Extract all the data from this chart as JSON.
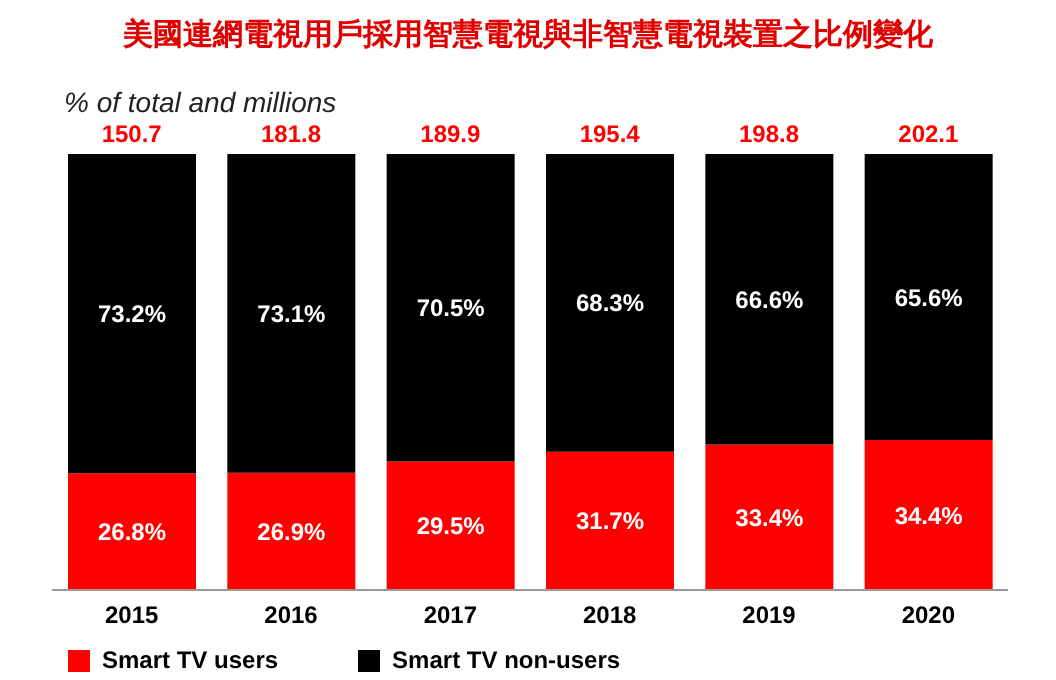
{
  "chart_data": {
    "type": "bar",
    "title": "美國連網電視用戶採用智慧電視與非智慧電視裝置之比例變化",
    "subtitle": "% of total and millions",
    "categories": [
      "2015",
      "2016",
      "2017",
      "2018",
      "2019",
      "2020"
    ],
    "stacked": true,
    "legend": "bottom left",
    "grid": false,
    "annotations": [
      {
        "text": "150.7",
        "x": "2015",
        "y": 100
      },
      {
        "text": "181.8",
        "x": "2016",
        "y": 100
      },
      {
        "text": "189.9",
        "x": "2017",
        "y": 100
      },
      {
        "text": "195.4",
        "x": "2018",
        "y": 100
      },
      {
        "text": "198.8",
        "x": "2019",
        "y": 100
      },
      {
        "text": "202.1",
        "x": "2020",
        "y": 100
      }
    ],
    "series": [
      {
        "name": "Smart TV users",
        "color": "#ff0000",
        "values": [
          26.8,
          26.9,
          29.5,
          31.7,
          33.4,
          34.4
        ],
        "value_labels": [
          "26.8%",
          "26.9%",
          "29.5%",
          "31.7%",
          "33.4%",
          "34.4%"
        ]
      },
      {
        "name": "Smart TV non-users",
        "color": "#000000",
        "values": [
          73.2,
          73.1,
          70.5,
          68.3,
          66.6,
          65.6
        ],
        "value_labels": [
          "73.2%",
          "73.1%",
          "70.5%",
          "68.3%",
          "66.6%",
          "65.6%"
        ]
      }
    ]
  }
}
